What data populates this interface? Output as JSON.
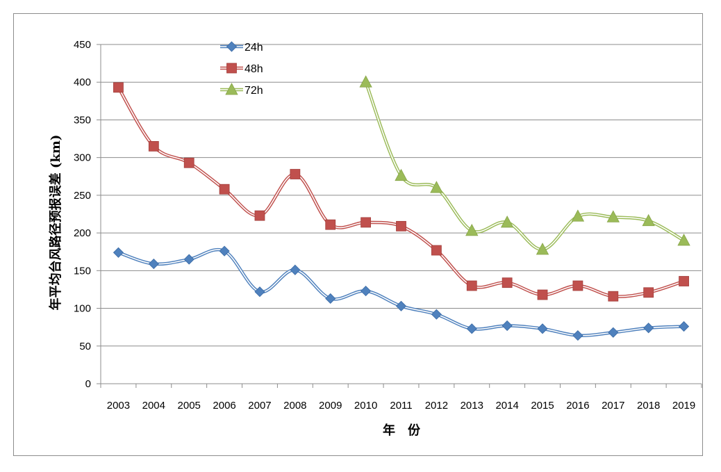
{
  "chart_data": {
    "type": "line",
    "title": "",
    "xlabel": "年　份",
    "ylabel": "年平均台风路径预报误差 (km)",
    "ylim": [
      0,
      450
    ],
    "yticks": [
      0,
      50,
      100,
      150,
      200,
      250,
      300,
      350,
      400,
      450
    ],
    "grid": true,
    "legend": "top-left",
    "categories": [
      "2003",
      "2004",
      "2005",
      "2006",
      "2007",
      "2008",
      "2009",
      "2010",
      "2011",
      "2012",
      "2013",
      "2014",
      "2015",
      "2016",
      "2017",
      "2018",
      "2019"
    ],
    "series": [
      {
        "name": "24h",
        "marker": "diamond",
        "color": "#4f81bd",
        "values": [
          174,
          159,
          165,
          176,
          122,
          151,
          113,
          123,
          103,
          92,
          73,
          77,
          73,
          64,
          68,
          74,
          76
        ]
      },
      {
        "name": "48h",
        "marker": "square",
        "color": "#c0504d",
        "values": [
          393,
          315,
          293,
          258,
          223,
          278,
          211,
          214,
          209,
          177,
          130,
          134,
          118,
          130,
          116,
          121,
          136
        ]
      },
      {
        "name": "72h",
        "marker": "triangle",
        "color": "#9bbb59",
        "values": [
          null,
          null,
          null,
          null,
          null,
          null,
          null,
          400,
          276,
          260,
          203,
          214,
          178,
          222,
          221,
          216,
          190
        ]
      }
    ]
  }
}
